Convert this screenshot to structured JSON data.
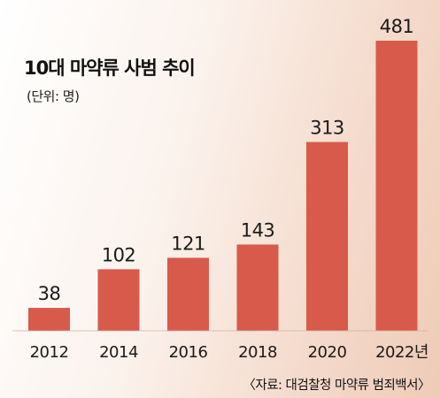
{
  "chart_data": {
    "type": "bar",
    "title": "10대 마약류 사범 추이",
    "unit_label": "(단위: 명)",
    "categories": [
      "2012",
      "2014",
      "2016",
      "2018",
      "2020",
      "2022년"
    ],
    "values": [
      38,
      102,
      121,
      143,
      313,
      481
    ],
    "value_labels": [
      "38",
      "102",
      "121",
      "143",
      "313",
      "481"
    ],
    "source": "〈자료: 대검찰청 마약류 범죄백서〉",
    "bar_color": "#d85a4b",
    "ylim": [
      0,
      481
    ],
    "grid": false,
    "legend": "none"
  }
}
